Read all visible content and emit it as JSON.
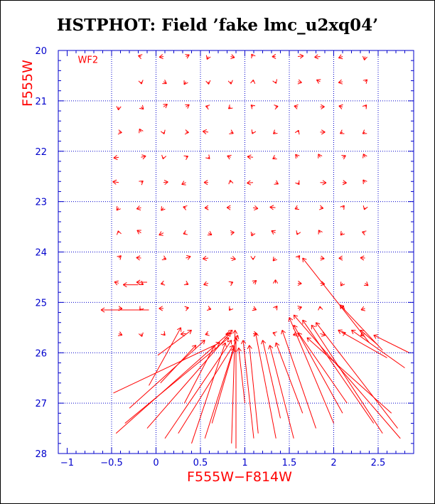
{
  "chart_data": {
    "type": "scatter",
    "title": "HSTPHOT: Field ’fake lmc_u2xq04’",
    "xlabel": "F555W−F814W",
    "ylabel": "F555W",
    "annotation": "WF2",
    "xlim": [
      -1.1,
      2.9
    ],
    "ylim": [
      28,
      20
    ],
    "x_ticks": [
      -1,
      -0.5,
      0,
      0.5,
      1,
      1.5,
      2,
      2.5
    ],
    "y_ticks": [
      20,
      21,
      22,
      23,
      24,
      25,
      26,
      27,
      28
    ],
    "x_tick_labels": [
      "−1",
      "−0.5",
      "0",
      "0.5",
      "1",
      "1.5",
      "2",
      "2.5"
    ],
    "y_tick_labels": [
      "20",
      "21",
      "22",
      "23",
      "24",
      "25",
      "26",
      "27",
      "28"
    ],
    "grid": true,
    "grid_x": [
      -0.5,
      0,
      0.5,
      1,
      1.5,
      2,
      2.5
    ],
    "grid_y": [
      21,
      22,
      23,
      24,
      25,
      26,
      27
    ],
    "grid_style": "dotted",
    "colors": {
      "axes": "#0000cc",
      "data": "#ff0000",
      "title": "#000000"
    },
    "vector_grid": {
      "x_start": -0.42,
      "x_step": 0.252,
      "x_count": 12,
      "y_start": 20.12,
      "y_step": 0.5,
      "y_count": 16,
      "tip_length": 0.05,
      "mag_length": 0.13
    },
    "long_vectors": [
      {
        "x0": -0.08,
        "y0": 26.65,
        "x1": 0.28,
        "y1": 25.5
      },
      {
        "x0": 0.05,
        "y0": 26.6,
        "x1": 0.45,
        "y1": 25.85
      },
      {
        "x0": -0.3,
        "y0": 27.1,
        "x1": 0.55,
        "y1": 25.75
      },
      {
        "x0": -0.48,
        "y0": 26.8,
        "x1": 0.72,
        "y1": 25.8
      },
      {
        "x0": -0.35,
        "y0": 27.4,
        "x1": 0.82,
        "y1": 25.7
      },
      {
        "x0": -0.45,
        "y0": 27.6,
        "x1": 0.86,
        "y1": 25.55
      },
      {
        "x0": -0.1,
        "y0": 27.5,
        "x1": 0.84,
        "y1": 25.6
      },
      {
        "x0": 0.1,
        "y0": 27.7,
        "x1": 0.85,
        "y1": 25.75
      },
      {
        "x0": 0.25,
        "y0": 27.6,
        "x1": 0.87,
        "y1": 25.85
      },
      {
        "x0": 0.4,
        "y0": 27.8,
        "x1": 0.78,
        "y1": 25.8
      },
      {
        "x0": 0.32,
        "y0": 27.0,
        "x1": 0.66,
        "y1": 25.85
      },
      {
        "x0": 0.55,
        "y0": 27.7,
        "x1": 0.92,
        "y1": 25.65
      },
      {
        "x0": 0.63,
        "y0": 27.4,
        "x1": 0.88,
        "y1": 25.9
      },
      {
        "x0": 0.85,
        "y0": 27.8,
        "x1": 0.89,
        "y1": 25.55
      },
      {
        "x0": 0.9,
        "y0": 27.9,
        "x1": 0.9,
        "y1": 25.7
      },
      {
        "x0": 1.0,
        "y0": 27.0,
        "x1": 0.93,
        "y1": 25.9
      },
      {
        "x0": 1.1,
        "y0": 27.7,
        "x1": 0.98,
        "y1": 25.75
      },
      {
        "x0": 1.15,
        "y0": 27.6,
        "x1": 1.05,
        "y1": 25.85
      },
      {
        "x0": 1.35,
        "y0": 27.7,
        "x1": 1.12,
        "y1": 25.6
      },
      {
        "x0": 1.4,
        "y0": 27.3,
        "x1": 1.2,
        "y1": 25.75
      },
      {
        "x0": 1.55,
        "y0": 27.7,
        "x1": 1.28,
        "y1": 25.85
      },
      {
        "x0": 1.65,
        "y0": 27.2,
        "x1": 1.35,
        "y1": 25.8
      },
      {
        "x0": 1.8,
        "y0": 27.5,
        "x1": 1.42,
        "y1": 25.55
      },
      {
        "x0": 2.0,
        "y0": 27.4,
        "x1": 1.5,
        "y1": 25.3
      },
      {
        "x0": 2.1,
        "y0": 27.2,
        "x1": 1.55,
        "y1": 25.45
      },
      {
        "x0": 2.15,
        "y0": 27.0,
        "x1": 1.6,
        "y1": 25.6
      },
      {
        "x0": 2.45,
        "y0": 27.4,
        "x1": 1.65,
        "y1": 25.35
      },
      {
        "x0": 2.55,
        "y0": 27.6,
        "x1": 1.75,
        "y1": 25.45
      },
      {
        "x0": 2.65,
        "y0": 27.2,
        "x1": 1.7,
        "y1": 25.7
      },
      {
        "x0": 2.75,
        "y0": 27.7,
        "x1": 1.55,
        "y1": 25.25
      },
      {
        "x0": 2.72,
        "y0": 27.5,
        "x1": 1.8,
        "y1": 25.4
      },
      {
        "x0": 2.6,
        "y0": 26.1,
        "x1": 2.05,
        "y1": 25.55
      },
      {
        "x0": 2.8,
        "y0": 26.3,
        "x1": 2.2,
        "y1": 25.55
      },
      {
        "x0": 2.5,
        "y0": 25.85,
        "x1": 2.3,
        "y1": 25.55
      },
      {
        "x0": 2.85,
        "y0": 26.0,
        "x1": 2.45,
        "y1": 25.65
      },
      {
        "x0": 2.4,
        "y0": 25.8,
        "x1": 1.65,
        "y1": 24.12
      },
      {
        "x0": 2.55,
        "y0": 25.95,
        "x1": 2.07,
        "y1": 25.05
      },
      {
        "x0": -0.08,
        "y0": 25.15,
        "x1": -0.62,
        "y1": 25.15
      },
      {
        "x0": -0.2,
        "y0": 24.65,
        "x1": -0.37,
        "y1": 24.65
      },
      {
        "x0": -0.1,
        "y0": 24.6,
        "x1": -0.22,
        "y1": 24.6
      },
      {
        "x0": 0.02,
        "y0": 26.05,
        "x1": 0.4,
        "y1": 25.55
      }
    ]
  }
}
